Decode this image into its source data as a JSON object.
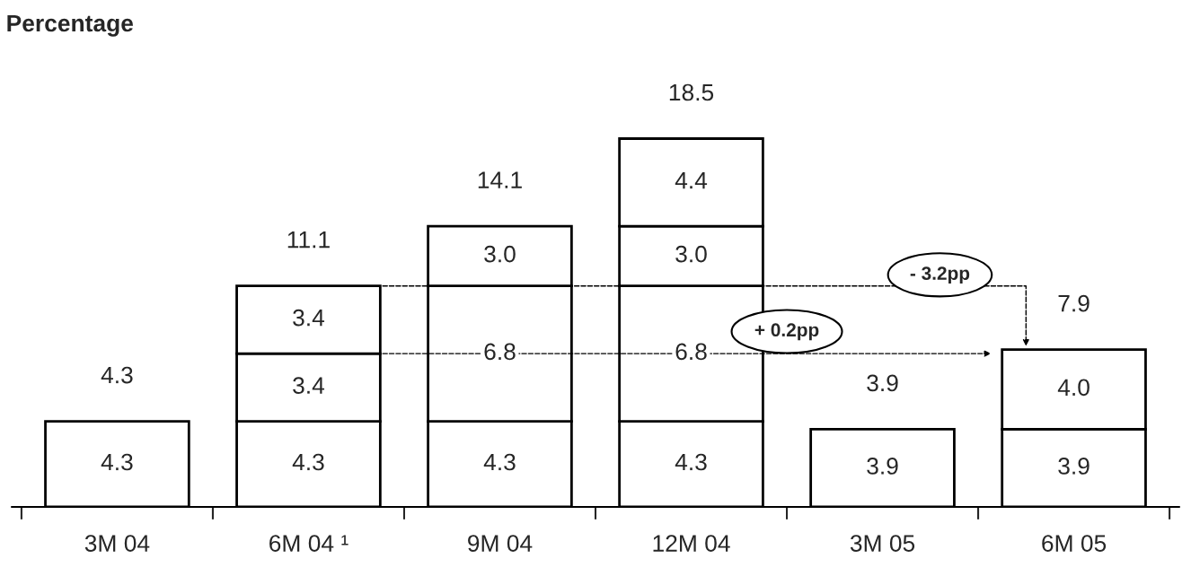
{
  "chart_data": {
    "type": "bar",
    "title": "Percentage",
    "stacked": true,
    "grid": false,
    "legend": false,
    "tick_labels": "x",
    "categories": [
      "3M 04",
      "6M 04 ¹",
      "9M 04",
      "12M 04",
      "3M 05",
      "6M 05"
    ],
    "series": [
      {
        "color": "#ffffff",
        "values": [
          4.3,
          4.3,
          4.3,
          4.3,
          3.9,
          3.9
        ],
        "value_labels": [
          "4.3",
          "4.3",
          "4.3",
          "4.3",
          "3.9",
          "3.9"
        ]
      },
      {
        "color": "#ffffff",
        "values": [
          null,
          3.4,
          6.8,
          6.8,
          null,
          4.0
        ],
        "value_labels": [
          null,
          "3.4",
          "6.8",
          "6.8",
          null,
          "4.0"
        ]
      },
      {
        "color": "#ffffff",
        "values": [
          null,
          3.4,
          3.0,
          3.0,
          null,
          null
        ],
        "value_labels": [
          null,
          "3.4",
          "3.0",
          "3.0",
          null,
          null
        ]
      },
      {
        "color": "#ffffff",
        "values": [
          null,
          null,
          null,
          4.4,
          null,
          null
        ],
        "value_labels": [
          null,
          null,
          null,
          "4.4",
          null,
          null
        ]
      }
    ],
    "totals": [
      "4.3",
      "11.1",
      "14.1",
      "18.5",
      "3.9",
      "7.9"
    ],
    "annotations": [
      "- 3.2pp",
      "+ 0.2pp"
    ]
  }
}
